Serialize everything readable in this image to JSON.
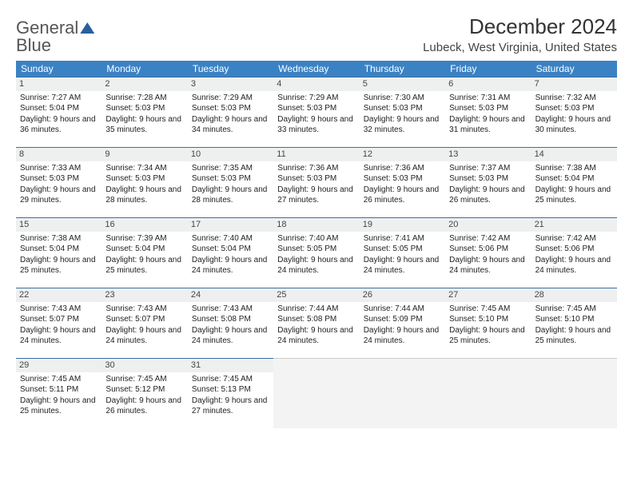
{
  "logo": {
    "line1": "General",
    "line2": "Blue"
  },
  "title": "December 2024",
  "location": "Lubeck, West Virginia, United States",
  "header_bg": "#3b82c4",
  "rule_color": "#3b6fa0",
  "daynum_bg": "#eef0f0",
  "empty_bg": "#f3f3f3",
  "font_family": "Arial",
  "day_font_size": 10,
  "dow": [
    "Sunday",
    "Monday",
    "Tuesday",
    "Wednesday",
    "Thursday",
    "Friday",
    "Saturday"
  ],
  "days": [
    {
      "n": "1",
      "sunrise": "7:27 AM",
      "sunset": "5:04 PM",
      "daylight": "9 hours and 36 minutes."
    },
    {
      "n": "2",
      "sunrise": "7:28 AM",
      "sunset": "5:03 PM",
      "daylight": "9 hours and 35 minutes."
    },
    {
      "n": "3",
      "sunrise": "7:29 AM",
      "sunset": "5:03 PM",
      "daylight": "9 hours and 34 minutes."
    },
    {
      "n": "4",
      "sunrise": "7:29 AM",
      "sunset": "5:03 PM",
      "daylight": "9 hours and 33 minutes."
    },
    {
      "n": "5",
      "sunrise": "7:30 AM",
      "sunset": "5:03 PM",
      "daylight": "9 hours and 32 minutes."
    },
    {
      "n": "6",
      "sunrise": "7:31 AM",
      "sunset": "5:03 PM",
      "daylight": "9 hours and 31 minutes."
    },
    {
      "n": "7",
      "sunrise": "7:32 AM",
      "sunset": "5:03 PM",
      "daylight": "9 hours and 30 minutes."
    },
    {
      "n": "8",
      "sunrise": "7:33 AM",
      "sunset": "5:03 PM",
      "daylight": "9 hours and 29 minutes."
    },
    {
      "n": "9",
      "sunrise": "7:34 AM",
      "sunset": "5:03 PM",
      "daylight": "9 hours and 28 minutes."
    },
    {
      "n": "10",
      "sunrise": "7:35 AM",
      "sunset": "5:03 PM",
      "daylight": "9 hours and 28 minutes."
    },
    {
      "n": "11",
      "sunrise": "7:36 AM",
      "sunset": "5:03 PM",
      "daylight": "9 hours and 27 minutes."
    },
    {
      "n": "12",
      "sunrise": "7:36 AM",
      "sunset": "5:03 PM",
      "daylight": "9 hours and 26 minutes."
    },
    {
      "n": "13",
      "sunrise": "7:37 AM",
      "sunset": "5:03 PM",
      "daylight": "9 hours and 26 minutes."
    },
    {
      "n": "14",
      "sunrise": "7:38 AM",
      "sunset": "5:04 PM",
      "daylight": "9 hours and 25 minutes."
    },
    {
      "n": "15",
      "sunrise": "7:38 AM",
      "sunset": "5:04 PM",
      "daylight": "9 hours and 25 minutes."
    },
    {
      "n": "16",
      "sunrise": "7:39 AM",
      "sunset": "5:04 PM",
      "daylight": "9 hours and 25 minutes."
    },
    {
      "n": "17",
      "sunrise": "7:40 AM",
      "sunset": "5:04 PM",
      "daylight": "9 hours and 24 minutes."
    },
    {
      "n": "18",
      "sunrise": "7:40 AM",
      "sunset": "5:05 PM",
      "daylight": "9 hours and 24 minutes."
    },
    {
      "n": "19",
      "sunrise": "7:41 AM",
      "sunset": "5:05 PM",
      "daylight": "9 hours and 24 minutes."
    },
    {
      "n": "20",
      "sunrise": "7:42 AM",
      "sunset": "5:06 PM",
      "daylight": "9 hours and 24 minutes."
    },
    {
      "n": "21",
      "sunrise": "7:42 AM",
      "sunset": "5:06 PM",
      "daylight": "9 hours and 24 minutes."
    },
    {
      "n": "22",
      "sunrise": "7:43 AM",
      "sunset": "5:07 PM",
      "daylight": "9 hours and 24 minutes."
    },
    {
      "n": "23",
      "sunrise": "7:43 AM",
      "sunset": "5:07 PM",
      "daylight": "9 hours and 24 minutes."
    },
    {
      "n": "24",
      "sunrise": "7:43 AM",
      "sunset": "5:08 PM",
      "daylight": "9 hours and 24 minutes."
    },
    {
      "n": "25",
      "sunrise": "7:44 AM",
      "sunset": "5:08 PM",
      "daylight": "9 hours and 24 minutes."
    },
    {
      "n": "26",
      "sunrise": "7:44 AM",
      "sunset": "5:09 PM",
      "daylight": "9 hours and 24 minutes."
    },
    {
      "n": "27",
      "sunrise": "7:45 AM",
      "sunset": "5:10 PM",
      "daylight": "9 hours and 25 minutes."
    },
    {
      "n": "28",
      "sunrise": "7:45 AM",
      "sunset": "5:10 PM",
      "daylight": "9 hours and 25 minutes."
    },
    {
      "n": "29",
      "sunrise": "7:45 AM",
      "sunset": "5:11 PM",
      "daylight": "9 hours and 25 minutes."
    },
    {
      "n": "30",
      "sunrise": "7:45 AM",
      "sunset": "5:12 PM",
      "daylight": "9 hours and 26 minutes."
    },
    {
      "n": "31",
      "sunrise": "7:45 AM",
      "sunset": "5:13 PM",
      "daylight": "9 hours and 27 minutes."
    }
  ],
  "labels": {
    "sunrise": "Sunrise: ",
    "sunset": "Sunset: ",
    "daylight": "Daylight: "
  }
}
